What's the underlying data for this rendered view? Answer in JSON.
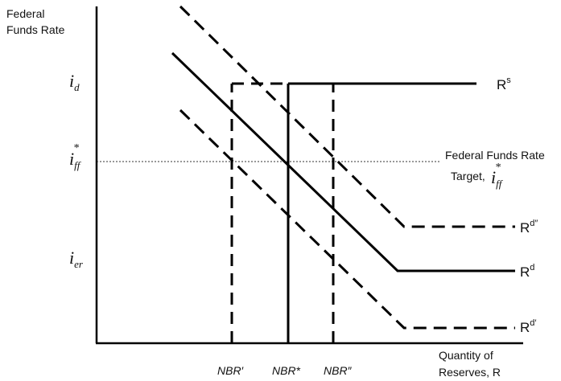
{
  "axes": {
    "y_title_line1": "Federal",
    "y_title_line2": "Funds Rate",
    "x_title_line1": "Quantity of",
    "x_title_line2": "Reserves, R"
  },
  "y_ticks": {
    "i_d": {
      "base": "i",
      "sub": "d"
    },
    "i_ff": {
      "base": "i",
      "sub": "ff",
      "sup": "*"
    },
    "i_er": {
      "base": "i",
      "sub": "er"
    }
  },
  "x_ticks": {
    "nbr_prime": "NBR′",
    "nbr_star": "NBR*",
    "nbr_double_prime": "NBR″"
  },
  "curve_labels": {
    "supply": {
      "base": "R",
      "sup": "s"
    },
    "demand": {
      "base": "R",
      "sup": "d"
    },
    "demand_double_prime": {
      "base": "R",
      "sup": "d″"
    },
    "demand_prime": {
      "base": "R",
      "sup": "d′"
    }
  },
  "target_label": {
    "line1": "Federal Funds Rate",
    "line2_prefix": "Target,",
    "symbol": {
      "base": "i",
      "sub": "ff",
      "sup": "*"
    }
  }
}
